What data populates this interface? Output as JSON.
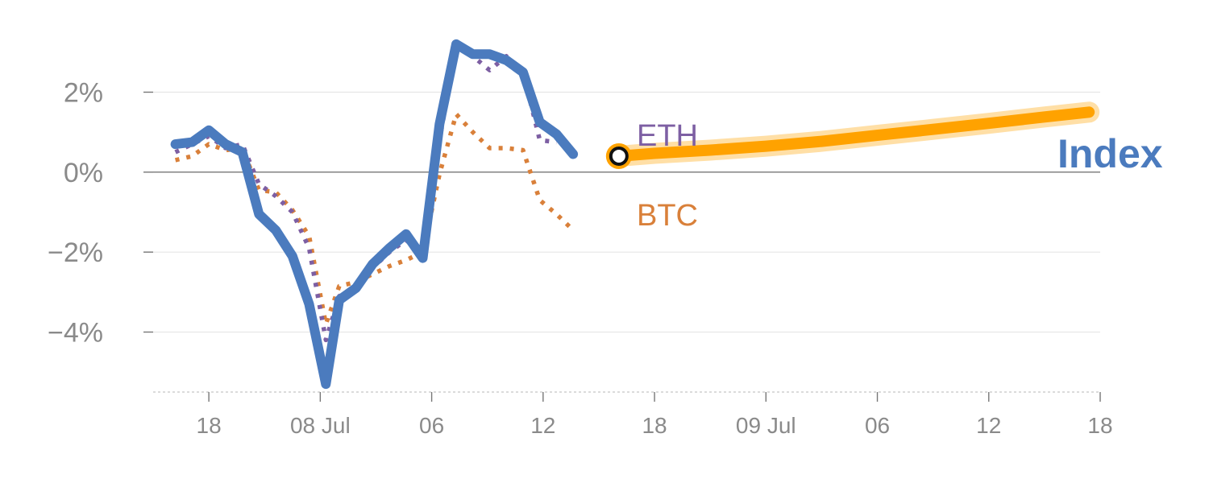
{
  "chart_data": {
    "type": "line",
    "ylim": [
      -5.5,
      3.5
    ],
    "yticks": [
      {
        "value": 2,
        "label": "2%"
      },
      {
        "value": 0,
        "label": "0%"
      },
      {
        "value": -2,
        "label": "−2%"
      },
      {
        "value": -4,
        "label": "−4%"
      }
    ],
    "xlim": [
      0,
      85
    ],
    "xticks": [
      {
        "value": 5,
        "label": "18"
      },
      {
        "value": 15,
        "label": "08 Jul"
      },
      {
        "value": 25,
        "label": "06"
      },
      {
        "value": 35,
        "label": "12"
      },
      {
        "value": 45,
        "label": "18"
      },
      {
        "value": 55,
        "label": "09 Jul"
      },
      {
        "value": 65,
        "label": "06"
      },
      {
        "value": 75,
        "label": "12"
      },
      {
        "value": 85,
        "label": "18"
      }
    ],
    "grid": true,
    "series": [
      {
        "name": "Index",
        "style": "solid",
        "color": "#4b7bbe",
        "x": [
          2,
          3.5,
          5,
          6.5,
          8,
          9.5,
          11,
          12.5,
          14,
          15.5,
          16.7,
          18.2,
          19.7,
          21.2,
          22.7,
          24.2,
          25.7,
          27.2,
          28.7,
          30.2,
          31.7,
          33.2,
          34.7,
          36.2,
          37.7,
          39.2,
          40.7,
          41.8
        ],
        "values": [
          0.7,
          0.75,
          1.05,
          0.7,
          0.5,
          -1.05,
          -1.45,
          -2.1,
          -3.3,
          -5.3,
          -3.2,
          -2.9,
          -2.3,
          -1.9,
          -1.55,
          -2.15,
          1.2,
          3.2,
          2.95,
          2.95,
          2.8,
          2.5,
          1.25,
          0.95,
          0.45,
          null,
          null,
          null
        ]
      },
      {
        "name": "ETH",
        "style": "dotted",
        "color": "#7d5fa3",
        "x": [
          2,
          3.5,
          5,
          6.5,
          8,
          9.5,
          11,
          12.5,
          14,
          15.5,
          16.7,
          18.2,
          19.7,
          21.2,
          22.7,
          24.2,
          25.7,
          27.2,
          28.7,
          30.2,
          31.7,
          33.2,
          34.7,
          36.2,
          37.7,
          39.2,
          40.7,
          41.8
        ],
        "values": [
          0.5,
          0.7,
          0.9,
          0.6,
          0.7,
          -0.3,
          -0.6,
          -1.0,
          -1.9,
          -4.2,
          -3.1,
          -2.9,
          -2.4,
          -2.0,
          -1.7,
          -2.05,
          0.8,
          3.15,
          2.9,
          2.55,
          2.9,
          2.5,
          0.8,
          0.75,
          null,
          null,
          null,
          null
        ]
      },
      {
        "name": "BTC",
        "style": "dotted",
        "color": "#d9803a",
        "x": [
          2,
          3.5,
          5,
          6.5,
          8,
          9.5,
          11,
          12.5,
          14,
          15.5,
          16.7,
          18.2,
          19.7,
          21.2,
          22.7,
          24.2,
          25.7,
          27.2,
          28.7,
          30.2,
          31.7,
          33.2,
          34.7,
          36.2,
          37.7,
          39.2,
          40.7,
          41.8
        ],
        "values": [
          0.3,
          0.4,
          0.7,
          0.55,
          0.6,
          -0.45,
          -0.5,
          -0.95,
          -1.6,
          -3.8,
          -2.85,
          -2.75,
          -2.55,
          -2.35,
          -2.2,
          -2.0,
          -0.05,
          1.45,
          1.0,
          0.6,
          0.6,
          0.55,
          -0.7,
          -1.05,
          -1.45,
          null,
          null,
          null
        ]
      },
      {
        "name": "forecast",
        "style": "thick",
        "color": "#ffa200",
        "x": [
          41.8,
          45,
          50,
          55,
          60,
          65,
          70,
          75,
          80,
          84
        ],
        "values": [
          0.4,
          0.47,
          0.55,
          0.65,
          0.77,
          0.92,
          1.07,
          1.22,
          1.38,
          1.5
        ]
      }
    ],
    "marker": {
      "x": 41.8,
      "value": 0.4
    },
    "labels": {
      "eth": "ETH",
      "btc": "BTC",
      "index": "Index"
    }
  }
}
